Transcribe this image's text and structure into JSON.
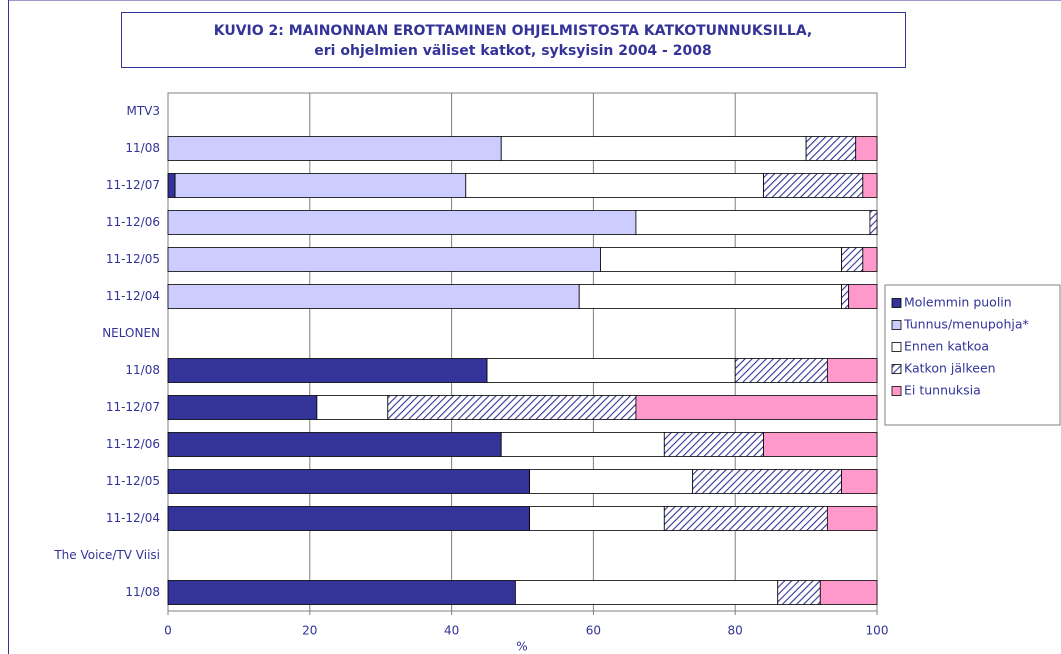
{
  "chart_data": {
    "type": "stacked-barh",
    "title": "KUVIO 2: MAINONNAN EROTTAMINEN OHJELMISTOSTA KATKOTUNNUKSILLA,",
    "subtitle": "eri ohjelmien väliset katkot, syksyisin 2004 - 2008",
    "xlabel": "%",
    "categories": [
      "MTV3",
      "11/08",
      "11-12/07",
      "11-12/06",
      "11-12/05",
      "11-12/04",
      "NELONEN",
      "11/08",
      "11-12/07",
      "11-12/06",
      "11-12/05",
      "11-12/04",
      "The Voice/TV Viisi",
      "11/08"
    ],
    "series": [
      {
        "name": "Molemmin puolin",
        "color": "#333399",
        "values": [
          null,
          0,
          1,
          0,
          0,
          0,
          null,
          45,
          21,
          47,
          51,
          51,
          null,
          49
        ]
      },
      {
        "name": "Tunnus/menupohja*",
        "color": "#ccccff",
        "values": [
          null,
          47,
          41,
          66,
          61,
          58,
          null,
          0,
          0,
          0,
          0,
          0,
          null,
          0
        ]
      },
      {
        "name": "Ennen katkoa",
        "color": "#ffffff",
        "values": [
          null,
          43,
          42,
          33,
          34,
          37,
          null,
          35,
          10,
          23,
          23,
          19,
          null,
          37
        ]
      },
      {
        "name": "Katkon jälkeen",
        "color": "#333399",
        "pattern": "hatch",
        "values": [
          null,
          7,
          14,
          1,
          3,
          1,
          null,
          13,
          35,
          14,
          21,
          23,
          null,
          6
        ]
      },
      {
        "name": "Ei tunnuksia",
        "color": "#ff99cc",
        "values": [
          null,
          3,
          2,
          0,
          2,
          4,
          null,
          7,
          34,
          16,
          5,
          7,
          null,
          8
        ]
      }
    ],
    "xlim": [
      0,
      100
    ],
    "xticks": [
      0,
      20,
      40,
      60,
      80,
      100
    ],
    "grid": true,
    "legend": "right"
  }
}
